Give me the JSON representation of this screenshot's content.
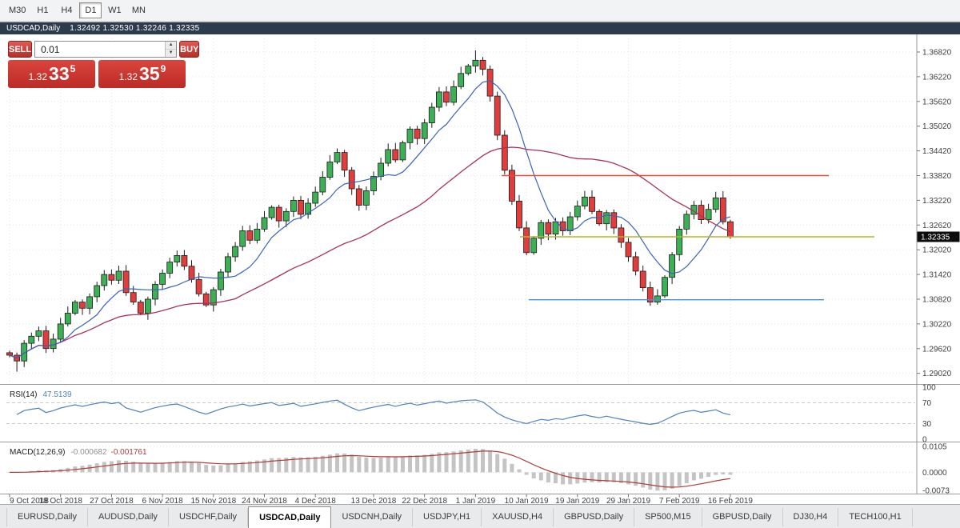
{
  "toolbar": {
    "timeframes": [
      "M30",
      "H1",
      "H4",
      "D1",
      "W1",
      "MN"
    ],
    "active_timeframe": "D1"
  },
  "chart": {
    "symbol_title": "USDCAD,Daily",
    "ohlc_readout": "1.32492 1.32530 1.32246 1.32335"
  },
  "trade_panel": {
    "sell_label": "SELL",
    "buy_label": "BUY",
    "lot_value": "0.01",
    "sell_price": {
      "prefix": "1.32",
      "big": "33",
      "sup": "5"
    },
    "buy_price": {
      "prefix": "1.32",
      "big": "35",
      "sup": "9"
    },
    "panel_color": "#c9332c"
  },
  "chart_data": {
    "type": "candlestick",
    "title": "USDCAD,Daily",
    "x_labels": [
      "9 Oct 2018",
      "18 Oct 2018",
      "27 Oct 2018",
      "6 Nov 2018",
      "15 Nov 2018",
      "24 Nov 2018",
      "4 Dec 2018",
      "13 Dec 2018",
      "22 Dec 2018",
      "1 Jan 2019",
      "10 Jan 2019",
      "19 Jan 2019",
      "29 Jan 2019",
      "7 Feb 2019",
      "16 Feb 2019"
    ],
    "y_axis_labels": [
      "1.36820",
      "1.36220",
      "1.35620",
      "1.35020",
      "1.34420",
      "1.33820",
      "1.33220",
      "1.32620",
      "1.32020",
      "1.31420",
      "1.30820",
      "1.30220",
      "1.29620",
      "1.29020"
    ],
    "y_range": [
      1.288,
      1.3715
    ],
    "grid": true,
    "candle_up_color": "#3cb054",
    "candle_down_color": "#e23d3d",
    "candles": {
      "first_open": 1.2952,
      "closes": [
        1.2946,
        1.2932,
        1.2975,
        1.2992,
        1.3005,
        1.2962,
        1.2985,
        1.3022,
        1.3048,
        1.3075,
        1.306,
        1.3088,
        1.3115,
        1.3142,
        1.3128,
        1.315,
        1.3098,
        1.3075,
        1.3048,
        1.3082,
        1.3118,
        1.3145,
        1.3172,
        1.3188,
        1.3162,
        1.313,
        1.3095,
        1.3068,
        1.3105,
        1.3148,
        1.3185,
        1.321,
        1.3248,
        1.3225,
        1.3252,
        1.328,
        1.3305,
        1.3272,
        1.3295,
        1.3322,
        1.3288,
        1.3315,
        1.3342,
        1.3378,
        1.3415,
        1.3438,
        1.3395,
        1.335,
        1.331,
        1.3345,
        1.338,
        1.3412,
        1.3445,
        1.342,
        1.3462,
        1.3495,
        1.3472,
        1.351,
        1.3548,
        1.3585,
        1.356,
        1.3598,
        1.363,
        1.3648,
        1.3662,
        1.364,
        1.3575,
        1.348,
        1.3395,
        1.332,
        1.3255,
        1.3195,
        1.323,
        1.3268,
        1.324,
        1.327,
        1.3248,
        1.3282,
        1.3308,
        1.333,
        1.3295,
        1.3265,
        1.3292,
        1.3255,
        1.322,
        1.3185,
        1.315,
        1.311,
        1.3075,
        1.309,
        1.3135,
        1.319,
        1.3252,
        1.3288,
        1.331,
        1.3275,
        1.33,
        1.3328,
        1.327,
        1.32335
      ],
      "typical_wick": 0.0012,
      "extremes": {
        "1": {
          "low": 1.2906
        },
        "45": {
          "high": 1.3448
        },
        "64": {
          "high": 1.3686
        },
        "88": {
          "low": 1.3066
        }
      }
    },
    "overlays": {
      "ma_fast": {
        "type": "sma",
        "period": 8,
        "color": "#3a62b8"
      },
      "ma_slow": {
        "type": "sma",
        "period": 32,
        "color": "#a8325a"
      }
    },
    "hlines": [
      {
        "price": 1.3382,
        "color": "#e8483c",
        "x1": 0.545,
        "x2": 0.905
      },
      {
        "price": 1.32335,
        "color": "#b5b52a",
        "x1": 0.565,
        "x2": 0.955
      },
      {
        "price": 1.30805,
        "color": "#4a90d9",
        "x1": 0.575,
        "x2": 0.9
      }
    ],
    "price_tag": "1.32335",
    "rsi": {
      "label": "RSI(14)",
      "value": "47.5139",
      "period": 14,
      "levels": [
        100,
        70,
        30,
        0
      ],
      "color": "#4f81bd"
    },
    "macd": {
      "label": "MACD(12,26,9)",
      "value_main": "-0.000682",
      "value_signal": "-0.001761",
      "fast": 12,
      "slow": 26,
      "signal": 9,
      "axis_labels": [
        "0.0105",
        "0.0000",
        "-0.0073"
      ],
      "hist_color": "#c4c4c4",
      "signal_color": "#b03a3a"
    }
  },
  "bottom_tabs": [
    "EURUSD,Daily",
    "AUDUSD,Daily",
    "USDCHF,Daily",
    "USDCAD,Daily",
    "USDCNH,Daily",
    "USDJPY,H1",
    "XAUUSD,H4",
    "GBPUSD,Daily",
    "SP500,M15",
    "GBPUSD,Daily",
    "DJ30,H4",
    "TECH100,H1"
  ],
  "active_tab": "USDCAD,Daily"
}
